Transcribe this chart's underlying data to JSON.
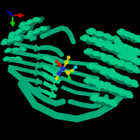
{
  "background_color": "#000000",
  "protein_color": "#00AA77",
  "protein_color_light": "#00CC88",
  "protein_color_dark": "#007755",
  "ligand_colors": {
    "yellow": "#CCCC00",
    "blue": "#2233CC",
    "red": "#CC2200",
    "green": "#00CC44",
    "cyan": "#00CCCC",
    "orange": "#CC6600"
  },
  "axis": {
    "x_color": "#CC0000",
    "y_color": "#00CC00",
    "z_color": "#0000CC",
    "ox": 18,
    "oy": 178
  },
  "figsize": [
    2.0,
    2.0
  ],
  "dpi": 100
}
